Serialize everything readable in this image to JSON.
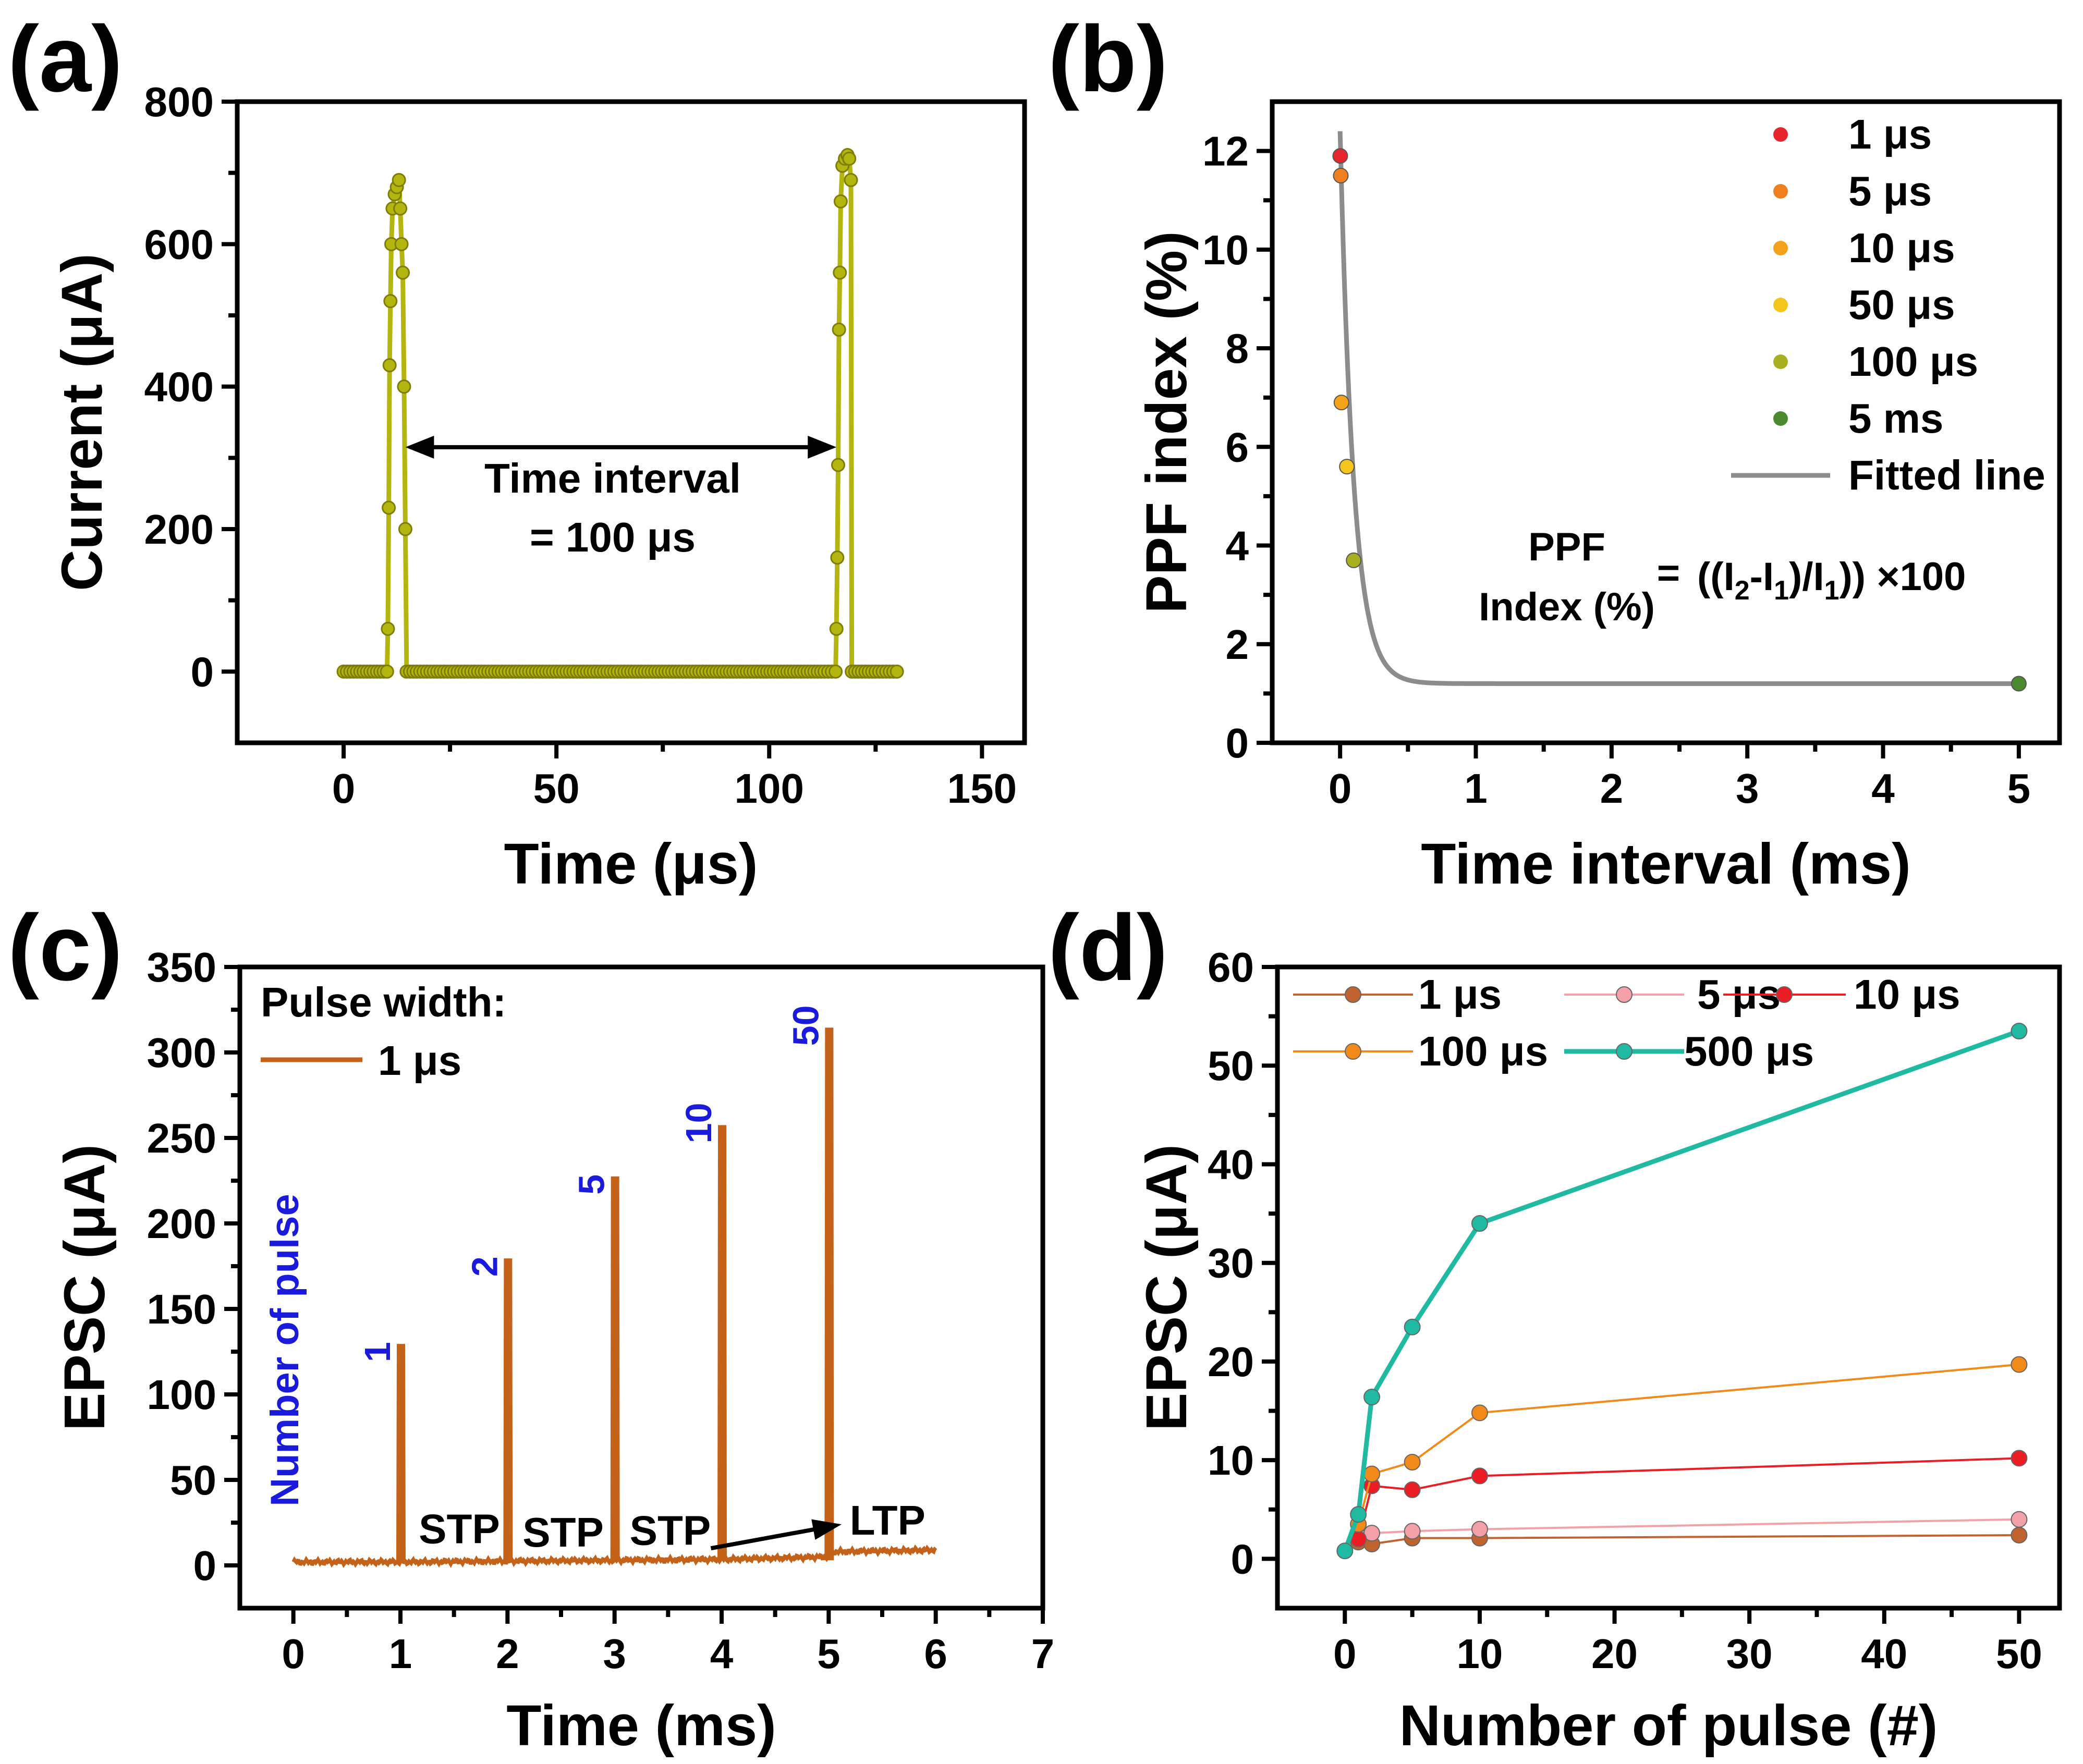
{
  "colors": {
    "a_trace": "#b5b50f",
    "b_1us": "#e6262e",
    "b_5us": "#f07f1f",
    "b_10us": "#f5a21a",
    "b_50us": "#f4c51a",
    "b_100us": "#a9b020",
    "b_5ms": "#4b8a2f",
    "b_fit": "#8c8c8c",
    "c_trace": "#c4621a",
    "c_annot": "#1a1adc",
    "d_1us": "#c0632e",
    "d_5us": "#f3a0a8",
    "d_10us": "#ec1c24",
    "d_100us": "#f28a1a",
    "d_500us": "#20b9a2"
  },
  "chart_data": [
    {
      "panel_label": "(a)",
      "type": "line",
      "title": "",
      "xlabel": "Time (μs)",
      "ylabel": "Current (μA)",
      "xlim": [
        -25,
        160
      ],
      "ylim": [
        -100,
        800
      ],
      "xticks": [
        0,
        50,
        100,
        150
      ],
      "xtick_labels": [
        "0",
        "50",
        "100",
        "150"
      ],
      "yticks": [
        0,
        200,
        400,
        600,
        800
      ],
      "ytick_labels": [
        "0",
        "200",
        "400",
        "600",
        "800"
      ],
      "series": [
        {
          "name": "Current",
          "x": [
            0,
            10.2,
            10.4,
            10.6,
            10.8,
            11.0,
            11.2,
            11.5,
            12.0,
            12.5,
            13.0,
            13.3,
            13.6,
            13.9,
            14.2,
            14.5,
            14.8,
            30,
            50,
            70,
            90,
            113,
            115.6,
            115.8,
            116.0,
            116.2,
            116.4,
            116.6,
            116.8,
            117.2,
            117.8,
            118.4,
            118.8,
            119.2,
            119.4,
            125,
            130
          ],
          "y": [
            0,
            0,
            60,
            230,
            430,
            520,
            600,
            650,
            670,
            680,
            690,
            650,
            600,
            560,
            400,
            200,
            0,
            0,
            0,
            0,
            0,
            0,
            0,
            60,
            160,
            290,
            480,
            560,
            660,
            710,
            720,
            725,
            720,
            690,
            0,
            0,
            0
          ]
        }
      ],
      "annotations": [
        {
          "text": "Time interval",
          "line2": "= 100 μs",
          "arrow_from_x": 14.5,
          "arrow_to_x": 115.8,
          "arrow_y": 315
        }
      ]
    },
    {
      "panel_label": "(b)",
      "type": "scatter",
      "title": "",
      "xlabel": "Time interval (ms)",
      "ylabel": "PPF index (%)",
      "xlim": [
        -0.5,
        5.3
      ],
      "ylim": [
        0,
        13
      ],
      "xticks": [
        0,
        1,
        2,
        3,
        4,
        5
      ],
      "xtick_labels": [
        "0",
        "1",
        "2",
        "3",
        "4",
        "5"
      ],
      "yticks": [
        0,
        2,
        4,
        6,
        8,
        10,
        12
      ],
      "ytick_labels": [
        "0",
        "2",
        "4",
        "6",
        "8",
        "10",
        "12"
      ],
      "series": [
        {
          "name": "1 μs",
          "x": [
            0.001
          ],
          "y": [
            11.9
          ],
          "color_key": "b_1us"
        },
        {
          "name": "5 μs",
          "x": [
            0.005
          ],
          "y": [
            11.5
          ],
          "color_key": "b_5us"
        },
        {
          "name": "10 μs",
          "x": [
            0.01
          ],
          "y": [
            6.9
          ],
          "color_key": "b_10us"
        },
        {
          "name": "50 μs",
          "x": [
            0.05
          ],
          "y": [
            5.6
          ],
          "color_key": "b_50us"
        },
        {
          "name": "100 μs",
          "x": [
            0.1
          ],
          "y": [
            3.7
          ],
          "color_key": "b_100us"
        },
        {
          "name": "5 ms",
          "x": [
            5.0
          ],
          "y": [
            1.2
          ],
          "color_key": "b_5ms"
        }
      ],
      "fit": {
        "name": "Fitted line",
        "model": "y = y0 + A*exp(-x/t)",
        "y0": 1.2,
        "A": 11.2,
        "t": 0.1,
        "x_start": 0.0,
        "x_end": 5.0,
        "color_key": "b_fit"
      },
      "legend_position": "top-right",
      "equation": {
        "lhs_line1": "PPF",
        "lhs_line2": "Index (%)",
        "eq_sign": "=",
        "rhs_open": "((I",
        "sub2": "2",
        "rhs_mid": "-I",
        "sub1": "1",
        "rhs_div": ")/I",
        "sub1b": "1",
        "rhs_close": ")) ×100"
      }
    },
    {
      "panel_label": "(c)",
      "type": "line",
      "title": "",
      "xlabel": "Time (ms)",
      "ylabel": "EPSC (μA)",
      "xlim": [
        -0.5,
        7
      ],
      "ylim": [
        -25,
        350
      ],
      "xticks": [
        0,
        1,
        2,
        3,
        4,
        5,
        6,
        7
      ],
      "xtick_labels": [
        "0",
        "1",
        "2",
        "3",
        "4",
        "5",
        "6",
        "7"
      ],
      "yticks": [
        0,
        50,
        100,
        150,
        200,
        250,
        300,
        350
      ],
      "ytick_labels": [
        "0",
        "50",
        "100",
        "150",
        "200",
        "250",
        "300",
        "350"
      ],
      "series": [
        {
          "name": "1 μs",
          "baseline": [
            [
              0,
              2
            ],
            [
              1,
              2
            ],
            [
              2,
              2.5
            ],
            [
              3,
              3
            ],
            [
              4,
              3.5
            ],
            [
              5,
              5
            ],
            [
              5.05,
              8
            ],
            [
              6,
              9
            ]
          ],
          "spikes": [
            {
              "x": 1,
              "peak": 128,
              "label": "1"
            },
            {
              "x": 2,
              "peak": 178,
              "label": "2"
            },
            {
              "x": 3,
              "peak": 226,
              "label": "5"
            },
            {
              "x": 4,
              "peak": 256,
              "label": "10"
            },
            {
              "x": 5,
              "peak": 313,
              "label": "50"
            }
          ]
        }
      ],
      "legend_title": "Pulse width:",
      "side_label": "Number of pulse",
      "annotations": [
        {
          "text": "STP",
          "x": 1.55,
          "y": 13
        },
        {
          "text": "STP",
          "x": 2.52,
          "y": 11
        },
        {
          "text": "STP",
          "x": 3.52,
          "y": 12
        },
        {
          "text": "LTP",
          "x": 5.55,
          "y": 18
        }
      ],
      "arrow": {
        "from_x": 3.9,
        "from_y": 10,
        "to_x": 5.12,
        "to_y": 24
      }
    },
    {
      "panel_label": "(d)",
      "type": "line",
      "title": "",
      "xlabel": "Number of pulse (#)",
      "ylabel": "EPSC (μA)",
      "xlim": [
        -5,
        53
      ],
      "ylim": [
        -5,
        60
      ],
      "xticks": [
        0,
        10,
        20,
        30,
        40,
        50
      ],
      "xtick_labels": [
        "0",
        "10",
        "20",
        "30",
        "40",
        "50"
      ],
      "yticks": [
        0,
        10,
        20,
        30,
        40,
        50,
        60
      ],
      "ytick_labels": [
        "0",
        "10",
        "20",
        "30",
        "40",
        "50",
        "60"
      ],
      "series": [
        {
          "name": "1 μs",
          "x": [
            1,
            2,
            5,
            10,
            50
          ],
          "y": [
            1.7,
            1.5,
            2.1,
            2.1,
            2.4
          ],
          "color_key": "d_1us"
        },
        {
          "name": "5 μs",
          "x": [
            1,
            2,
            5,
            10,
            50
          ],
          "y": [
            2.3,
            2.6,
            2.8,
            3.0,
            4.0
          ],
          "color_key": "d_5us"
        },
        {
          "name": "10 μs",
          "x": [
            1,
            2,
            5,
            10,
            50
          ],
          "y": [
            2.0,
            7.4,
            7.0,
            8.4,
            10.2
          ],
          "color_key": "d_10us"
        },
        {
          "name": "100 μs",
          "x": [
            1,
            2,
            5,
            10,
            50
          ],
          "y": [
            3.5,
            8.6,
            9.8,
            14.8,
            19.7
          ],
          "color_key": "d_100us"
        },
        {
          "name": "500 μs",
          "x": [
            0,
            1,
            2,
            5,
            10,
            50
          ],
          "y": [
            0.8,
            4.5,
            16.4,
            23.5,
            34.0,
            53.5
          ],
          "color_key": "d_500us"
        }
      ],
      "legend_position": "top-left"
    }
  ]
}
